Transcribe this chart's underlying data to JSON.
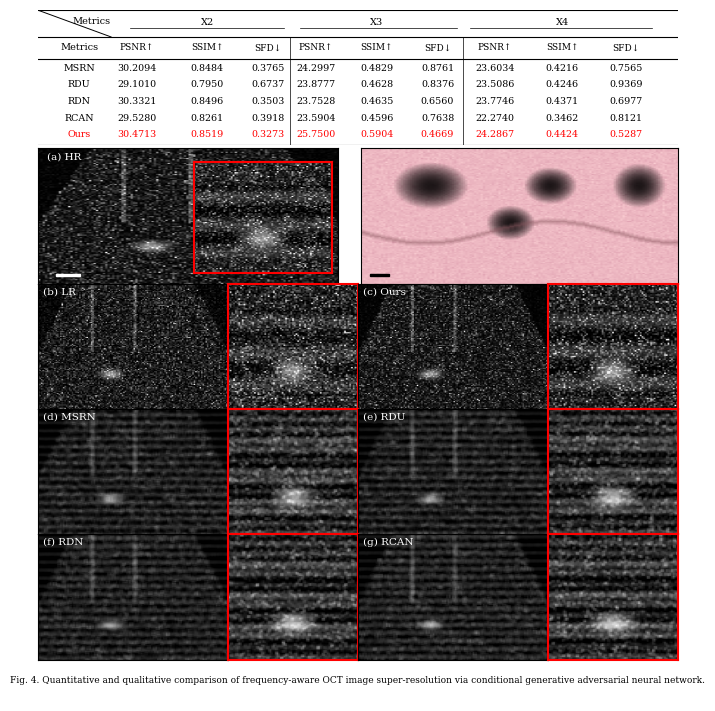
{
  "table": {
    "methods": [
      "MSRN",
      "RDU",
      "RDN",
      "RCAN",
      "Ours"
    ],
    "x2": {
      "PSNR": [
        "30.2094",
        "29.1010",
        "30.3321",
        "29.5280",
        "30.4713"
      ],
      "SSIM": [
        "0.8484",
        "0.7950",
        "0.8496",
        "0.8261",
        "0.8519"
      ],
      "SFD": [
        "0.3765",
        "0.6737",
        "0.3503",
        "0.3918",
        "0.3273"
      ]
    },
    "x3": {
      "PSNR": [
        "24.2997",
        "23.8777",
        "23.7528",
        "23.5904",
        "25.7500"
      ],
      "SSIM": [
        "0.4829",
        "0.4628",
        "0.4635",
        "0.4596",
        "0.5904"
      ],
      "SFD": [
        "0.8761",
        "0.8376",
        "0.6560",
        "0.7638",
        "0.4669"
      ]
    },
    "x4": {
      "PSNR": [
        "23.6034",
        "23.5086",
        "23.7746",
        "22.2740",
        "24.2867"
      ],
      "SSIM": [
        "0.4216",
        "0.4246",
        "0.4371",
        "0.3462",
        "0.4424"
      ],
      "SFD": [
        "0.7565",
        "0.9369",
        "0.6977",
        "0.8121",
        "0.5287"
      ]
    },
    "ours_color": "#FF0000",
    "normal_color": "#000000"
  },
  "figure_caption": "Fig. 4. Quantitative and qualitative comparison of frequency-aware OCT image super-resolution via conditional generative adversarial neural network.",
  "red_border_color": "#FF0000",
  "black_color": "#000000",
  "white_color": "#FFFFFF",
  "table_fs_header": 7.0,
  "table_fs_data": 6.8,
  "label_fontsize": 7.5,
  "caption_fontsize": 6.5
}
